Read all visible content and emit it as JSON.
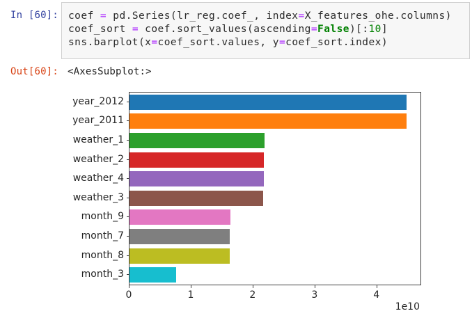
{
  "notebook": {
    "input_prompt": "In [60]:",
    "output_prompt": "Out[60]:",
    "output_text": "<AxesSubplot:>",
    "code_lines": [
      [
        {
          "t": "coef "
        },
        {
          "t": "=",
          "c": "op"
        },
        {
          "t": " pd.Series(lr_reg.coef_, index"
        },
        {
          "t": "=",
          "c": "op"
        },
        {
          "t": "X_features_ohe.columns)"
        }
      ],
      [
        {
          "t": "coef_sort "
        },
        {
          "t": "=",
          "c": "op"
        },
        {
          "t": " coef.sort_values(ascending"
        },
        {
          "t": "=",
          "c": "op"
        },
        {
          "t": "False",
          "c": "kw"
        },
        {
          "t": ")[:"
        },
        {
          "t": "10",
          "c": "num"
        },
        {
          "t": "]"
        }
      ],
      [
        {
          "t": "sns.barplot(x"
        },
        {
          "t": "=",
          "c": "op"
        },
        {
          "t": "coef_sort.values, y"
        },
        {
          "t": "=",
          "c": "op"
        },
        {
          "t": "coef_sort.index)"
        }
      ]
    ]
  },
  "colors": {
    "input_prompt": "#303F9F",
    "output_prompt": "#D84315",
    "operator": "#AA22FF",
    "keyword": "#008000",
    "number": "#008000",
    "code_text": "#2b2b2b",
    "cell_bg": "#f7f7f7",
    "cell_border": "#cfcfcf",
    "axis_spine": "#3d3d3d"
  },
  "chart_data": {
    "type": "bar",
    "orientation": "horizontal",
    "title": "",
    "xlabel": "",
    "ylabel": "",
    "categories": [
      "year_2012",
      "year_2011",
      "weather_1",
      "weather_2",
      "weather_4",
      "weather_3",
      "month_9",
      "month_7",
      "month_8",
      "month_3"
    ],
    "values": [
      44800000000.0,
      44700000000.0,
      21800000000.0,
      21700000000.0,
      21700000000.0,
      21600000000.0,
      16300000000.0,
      16200000000.0,
      16200000000.0,
      7500000000.0
    ],
    "palette": [
      "#1f77b4",
      "#ff7f0e",
      "#2ca02c",
      "#d62728",
      "#9467bd",
      "#8c564b",
      "#e377c2",
      "#7f7f7f",
      "#bcbd22",
      "#17becf"
    ],
    "xlim": [
      0,
      47000000000.0
    ],
    "xticks": [
      0,
      1,
      2,
      3,
      4
    ],
    "xticklabels": [
      "0",
      "1",
      "2",
      "3",
      "4"
    ],
    "offset_label": "1e10",
    "grid": false,
    "legend": null
  }
}
